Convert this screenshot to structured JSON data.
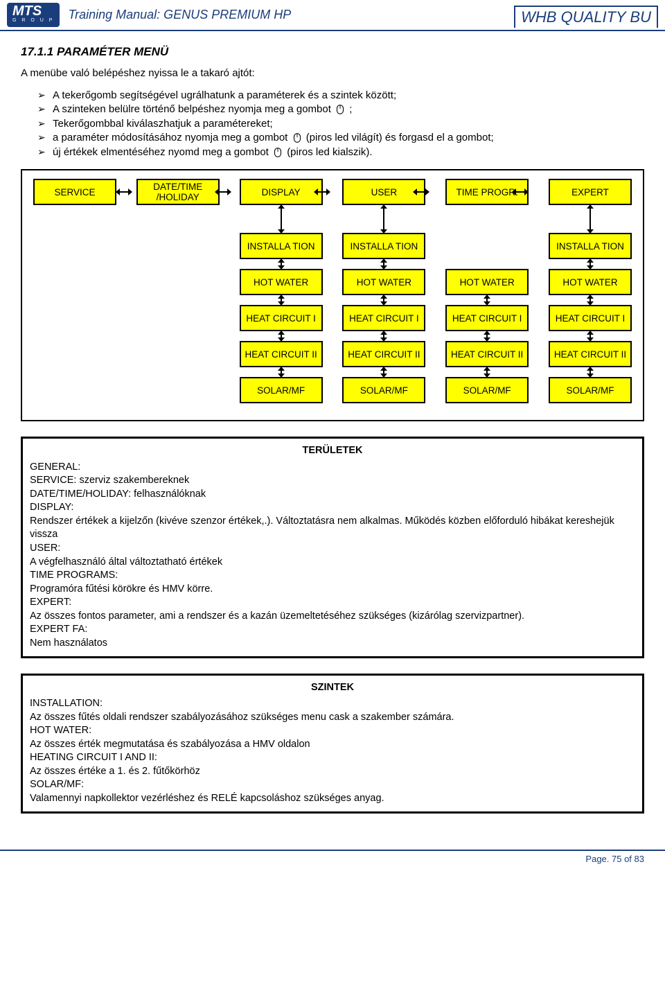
{
  "header": {
    "logo_main": "MTS",
    "logo_sub": "G R O U P",
    "title": "Training Manual: GENUS PREMIUM HP",
    "right": "WHB QUALITY BU"
  },
  "section_title": "17.1.1  PARAMÉTER MENÜ",
  "intro": "A menübe való belépéshez nyissa le a takaró ajtót:",
  "bullets": [
    "A tekerőgomb segítségével ugrálhatunk a paraméterek és a szintek között;",
    "A szinteken belülre történő belpéshez nyomja meg a gombot ",
    "Tekerőgombbal kiválaszhatjuk a paramétereket;",
    "a paraméter módosításához nyomja meg a gombot ",
    "új értékek elmentéséhez nyomd meg a gombot "
  ],
  "bullet_tail": {
    "1": " ;",
    "3": " (piros led világít) és forgasd el a gombot;",
    "4": " (piros led kialszik)."
  },
  "top_nodes": [
    "SERVICE",
    "DATE/TIME /HOLIDAY",
    "DISPLAY",
    "USER",
    "TIME PROGR.",
    "EXPERT"
  ],
  "grid": {
    "rows": [
      {
        "cells": [
          null,
          null,
          "INSTALLA TION",
          "INSTALLA TION",
          null,
          "INSTALLA TION"
        ]
      },
      {
        "cells": [
          null,
          null,
          "HOT WATER",
          "HOT WATER",
          "HOT WATER",
          "HOT WATER"
        ]
      },
      {
        "cells": [
          null,
          null,
          "HEAT CIRCUIT I",
          "HEAT CIRCUIT I",
          "HEAT CIRCUIT I",
          "HEAT CIRCUIT I"
        ]
      },
      {
        "cells": [
          null,
          null,
          "HEAT CIRCUIT II",
          "HEAT CIRCUIT II",
          "HEAT CIRCUIT II",
          "HEAT CIRCUIT II"
        ]
      },
      {
        "cells": [
          null,
          null,
          "SOLAR/MF",
          "SOLAR/MF",
          "SOLAR/MF",
          "SOLAR/MF"
        ]
      }
    ]
  },
  "colors": {
    "node_bg": "#ffff00",
    "border": "#000000",
    "brand": "#1a3d7c"
  },
  "teruletek": {
    "title": "TERÜLETEK",
    "lines": [
      "GENERAL:",
      "SERVICE: szerviz szakembereknek",
      "DATE/TIME/HOLIDAY: felhasználóknak",
      "DISPLAY:",
      "Rendszer értékek a kijelzőn (kivéve szenzor értékek,.). Változtatásra nem alkalmas. Működés közben előforduló hibákat kereshejük vissza",
      "USER:",
      "A végfelhasználó által változtatható értékek",
      "TIME PROGRAMS:",
      "Programóra fűtési körökre és HMV körre.",
      "EXPERT:",
      "Az összes fontos parameter, ami a rendszer és a kazán üzemeltetéséhez szükséges (kizárólag szervizpartner).",
      "EXPERT FA:",
      "Nem használatos"
    ]
  },
  "szintek": {
    "title": "SZINTEK",
    "lines": [
      "INSTALLATION:",
      "Az összes fűtés oldali rendszer szabályozásához szükséges menu cask a szakember számára.",
      "HOT WATER:",
      "Az összes érték megmutatása és szabályozása a HMV oldalon",
      "HEATING CIRCUIT I AND II:",
      "Az összes értéke a 1. és 2. fűtőkörhöz",
      "SOLAR/MF:",
      "Valamennyi napkollektor vezérléshez és RELÉ kapcsoláshoz szükséges anyag."
    ]
  },
  "footer": "Page. 75 of  83"
}
